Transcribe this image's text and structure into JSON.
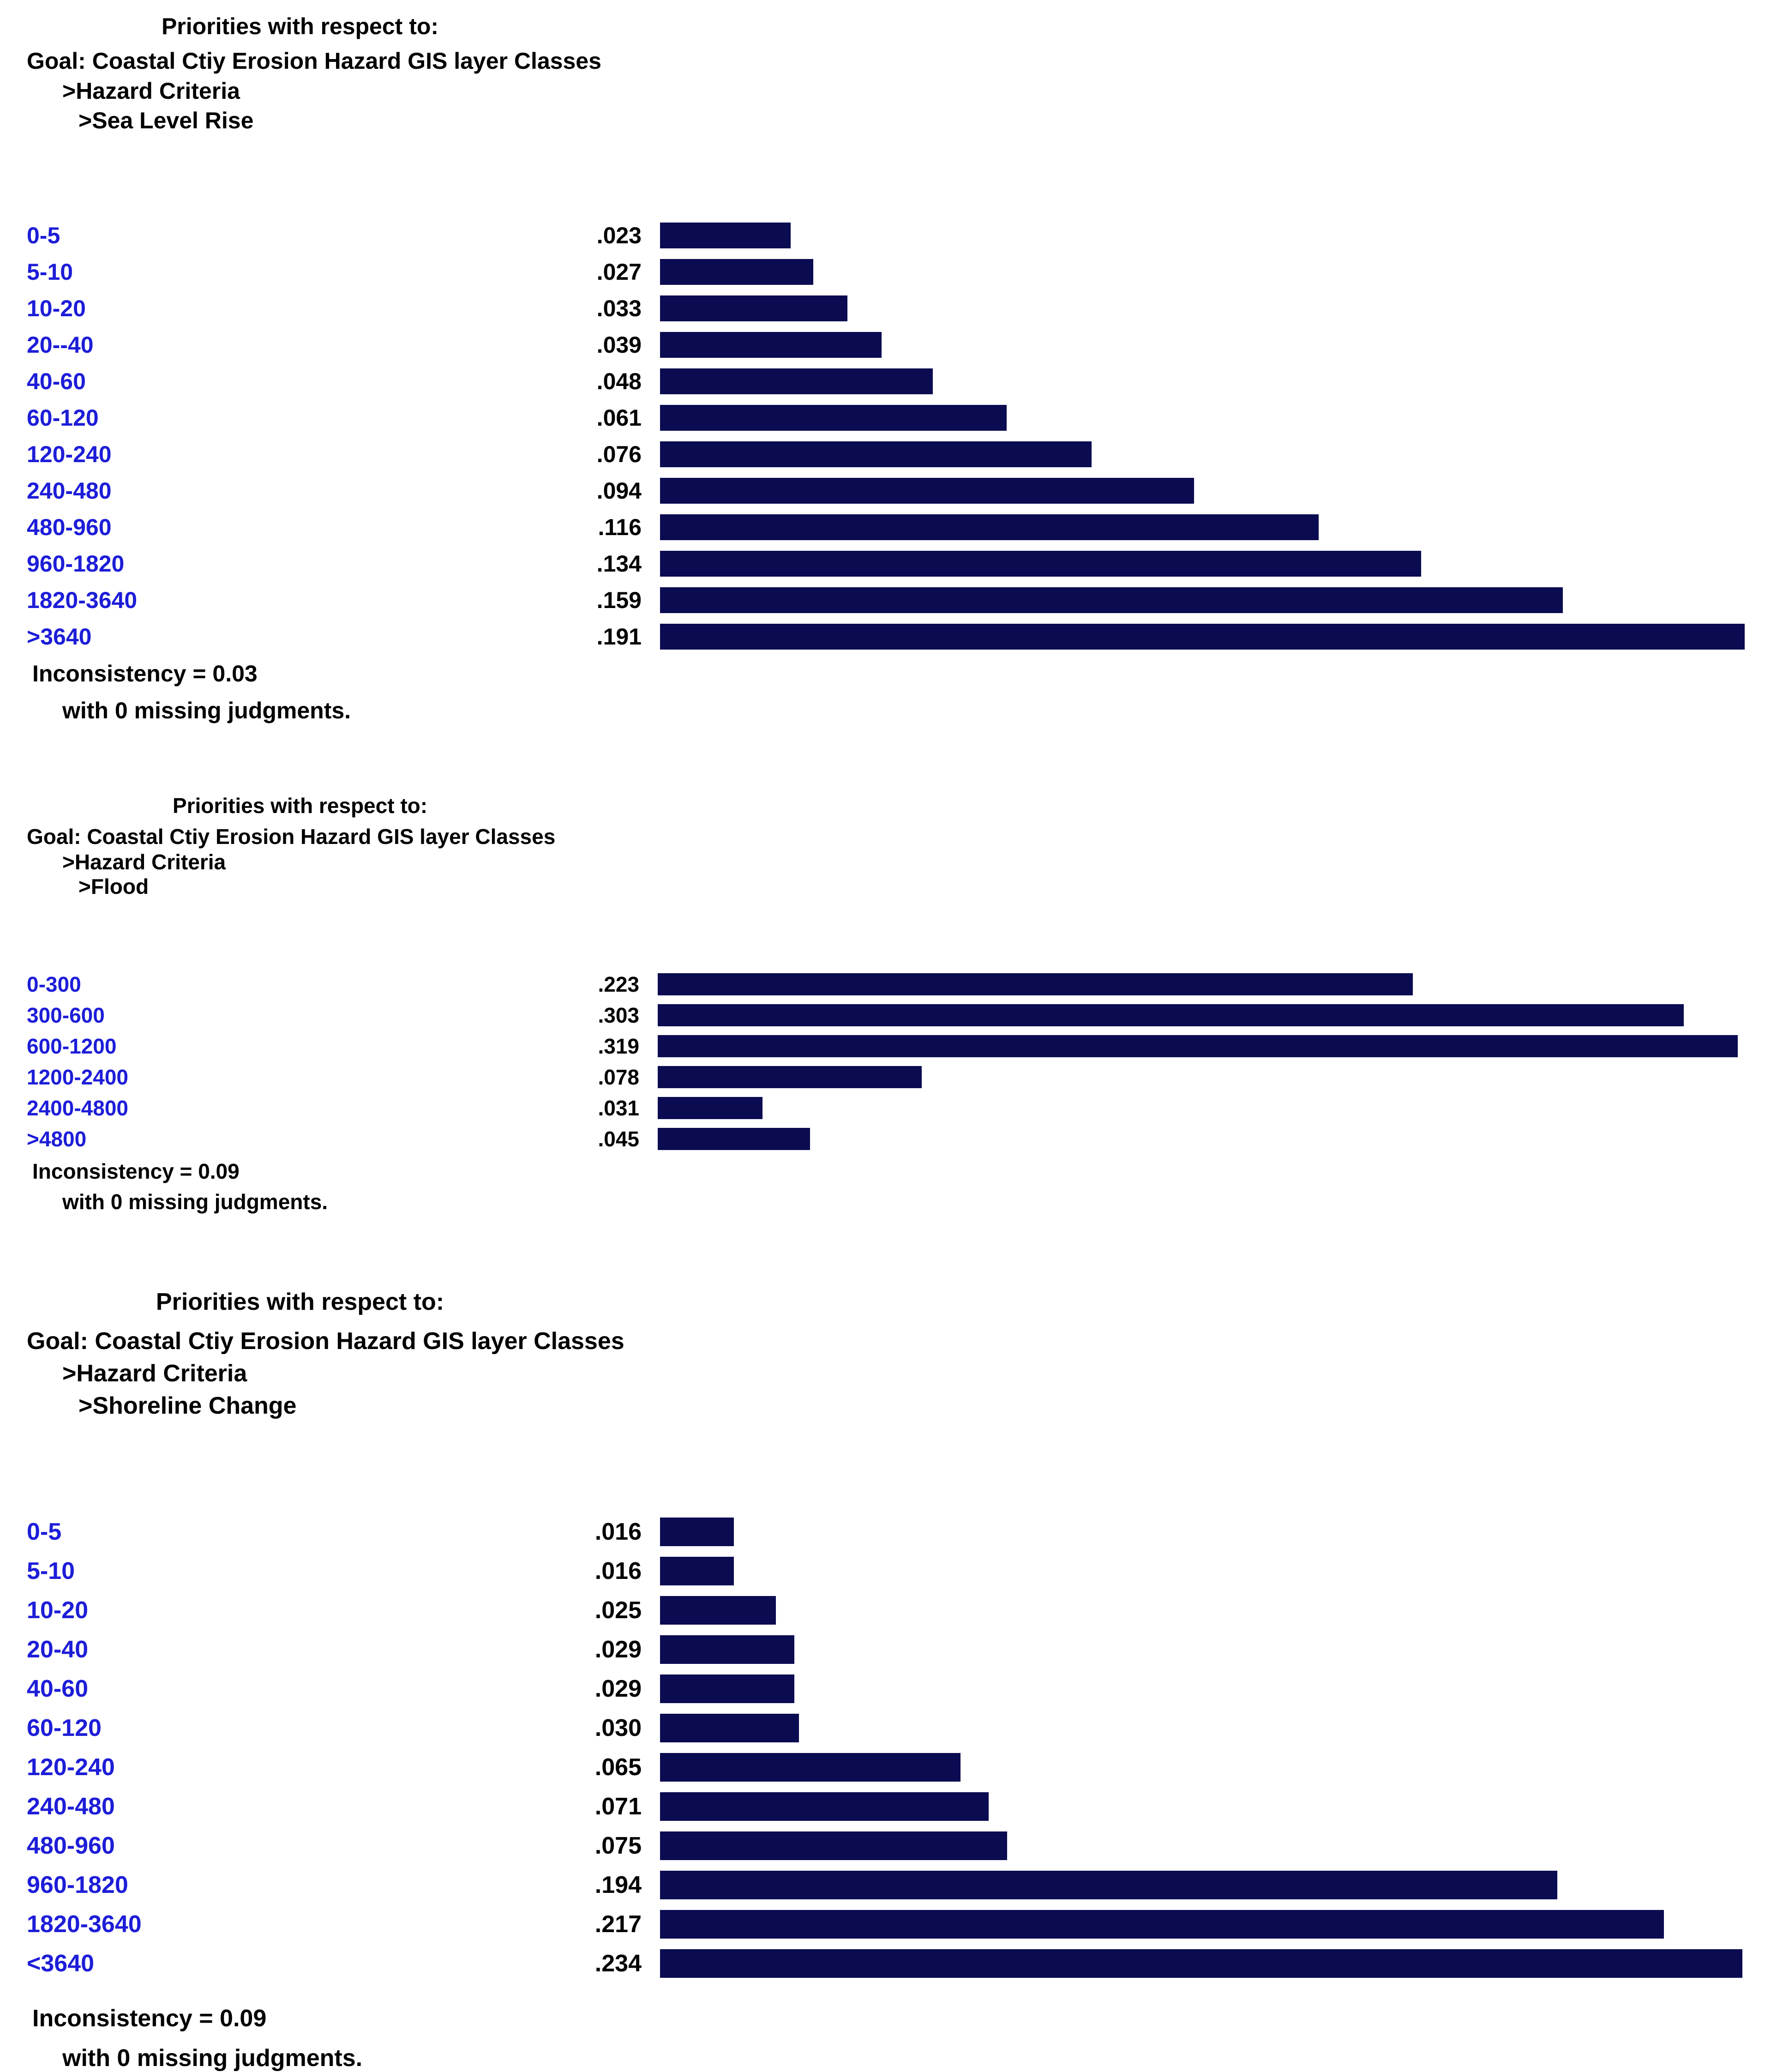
{
  "chart_data": [
    {
      "type": "bar",
      "orientation": "horizontal",
      "title": "Priorities with respect to:",
      "path": [
        "Goal: Coastal Ctiy Erosion Hazard GIS layer Classes",
        ">Hazard Criteria",
        ">Sea Level Rise"
      ],
      "categories": [
        "0-5",
        "5-10",
        "10-20",
        "20--40",
        "40-60",
        "60-120",
        "120-240",
        "240-480",
        "480-960",
        "960-1820",
        "1820-3640",
        ">3640"
      ],
      "values": [
        0.023,
        0.027,
        0.033,
        0.039,
        0.048,
        0.061,
        0.076,
        0.094,
        0.116,
        0.134,
        0.159,
        0.191
      ],
      "value_labels": [
        ".023",
        ".027",
        ".033",
        ".039",
        ".048",
        ".061",
        ".076",
        ".094",
        ".116",
        ".134",
        ".159",
        ".191"
      ],
      "inconsistency": "Inconsistency = 0.03",
      "missing": "with 0  missing judgments.",
      "bar_color": "#0b0b52",
      "label_color": "#1d1dd8"
    },
    {
      "type": "bar",
      "orientation": "horizontal",
      "title": "Priorities with respect to:",
      "path": [
        "Goal: Coastal Ctiy Erosion Hazard GIS layer Classes",
        ">Hazard Criteria",
        ">Flood"
      ],
      "categories": [
        "0-300",
        "300-600",
        "600-1200",
        "1200-2400",
        "2400-4800",
        ">4800"
      ],
      "values": [
        0.223,
        0.303,
        0.319,
        0.078,
        0.031,
        0.045
      ],
      "value_labels": [
        ".223",
        ".303",
        ".319",
        ".078",
        ".031",
        ".045"
      ],
      "inconsistency": "Inconsistency = 0.09",
      "missing": "with 0  missing judgments.",
      "bar_color": "#0b0b52",
      "label_color": "#1d1dd8"
    },
    {
      "type": "bar",
      "orientation": "horizontal",
      "title": "Priorities with respect to:",
      "path": [
        "Goal: Coastal Ctiy Erosion Hazard GIS layer Classes",
        ">Hazard Criteria",
        ">Shoreline Change"
      ],
      "categories": [
        "0-5",
        "5-10",
        "10-20",
        "20-40",
        "40-60",
        "60-120",
        "120-240",
        "240-480",
        "480-960",
        "960-1820",
        "1820-3640",
        "<3640"
      ],
      "values": [
        0.016,
        0.016,
        0.025,
        0.029,
        0.029,
        0.03,
        0.065,
        0.071,
        0.075,
        0.194,
        0.217,
        0.234
      ],
      "value_labels": [
        ".016",
        ".016",
        ".025",
        ".029",
        ".029",
        ".030",
        ".065",
        ".071",
        ".075",
        ".194",
        ".217",
        ".234"
      ],
      "inconsistency": "Inconsistency = 0.09",
      "missing": "with 0  missing judgments.",
      "bar_color": "#0b0b52",
      "label_color": "#1d1dd8"
    }
  ]
}
